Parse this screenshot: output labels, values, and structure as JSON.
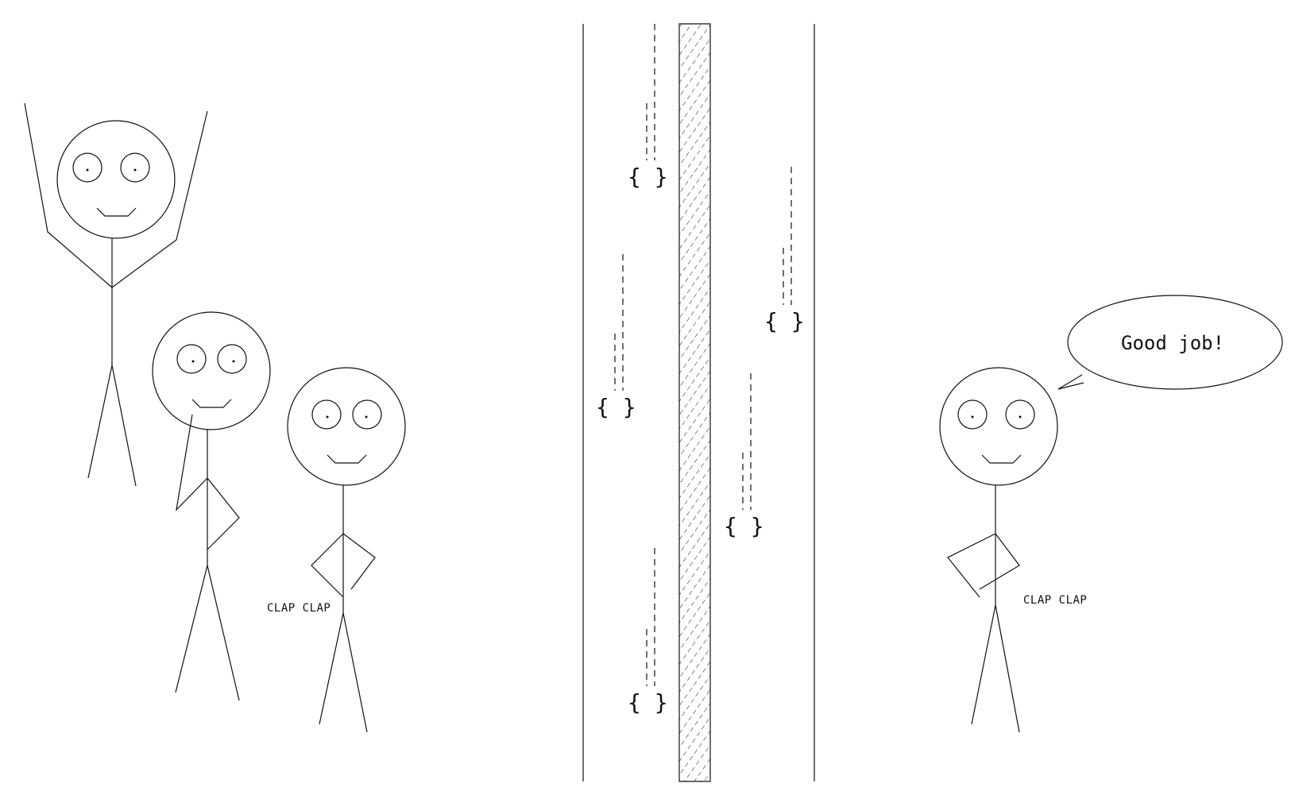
{
  "scene": {
    "speech_bubble_text": "Good job!",
    "clap_left": "CLAP CLAP",
    "clap_right": "CLAP CLAP",
    "brace_symbol": "{ }"
  },
  "colors": {
    "ink": "#111111",
    "background": "#ffffff"
  }
}
